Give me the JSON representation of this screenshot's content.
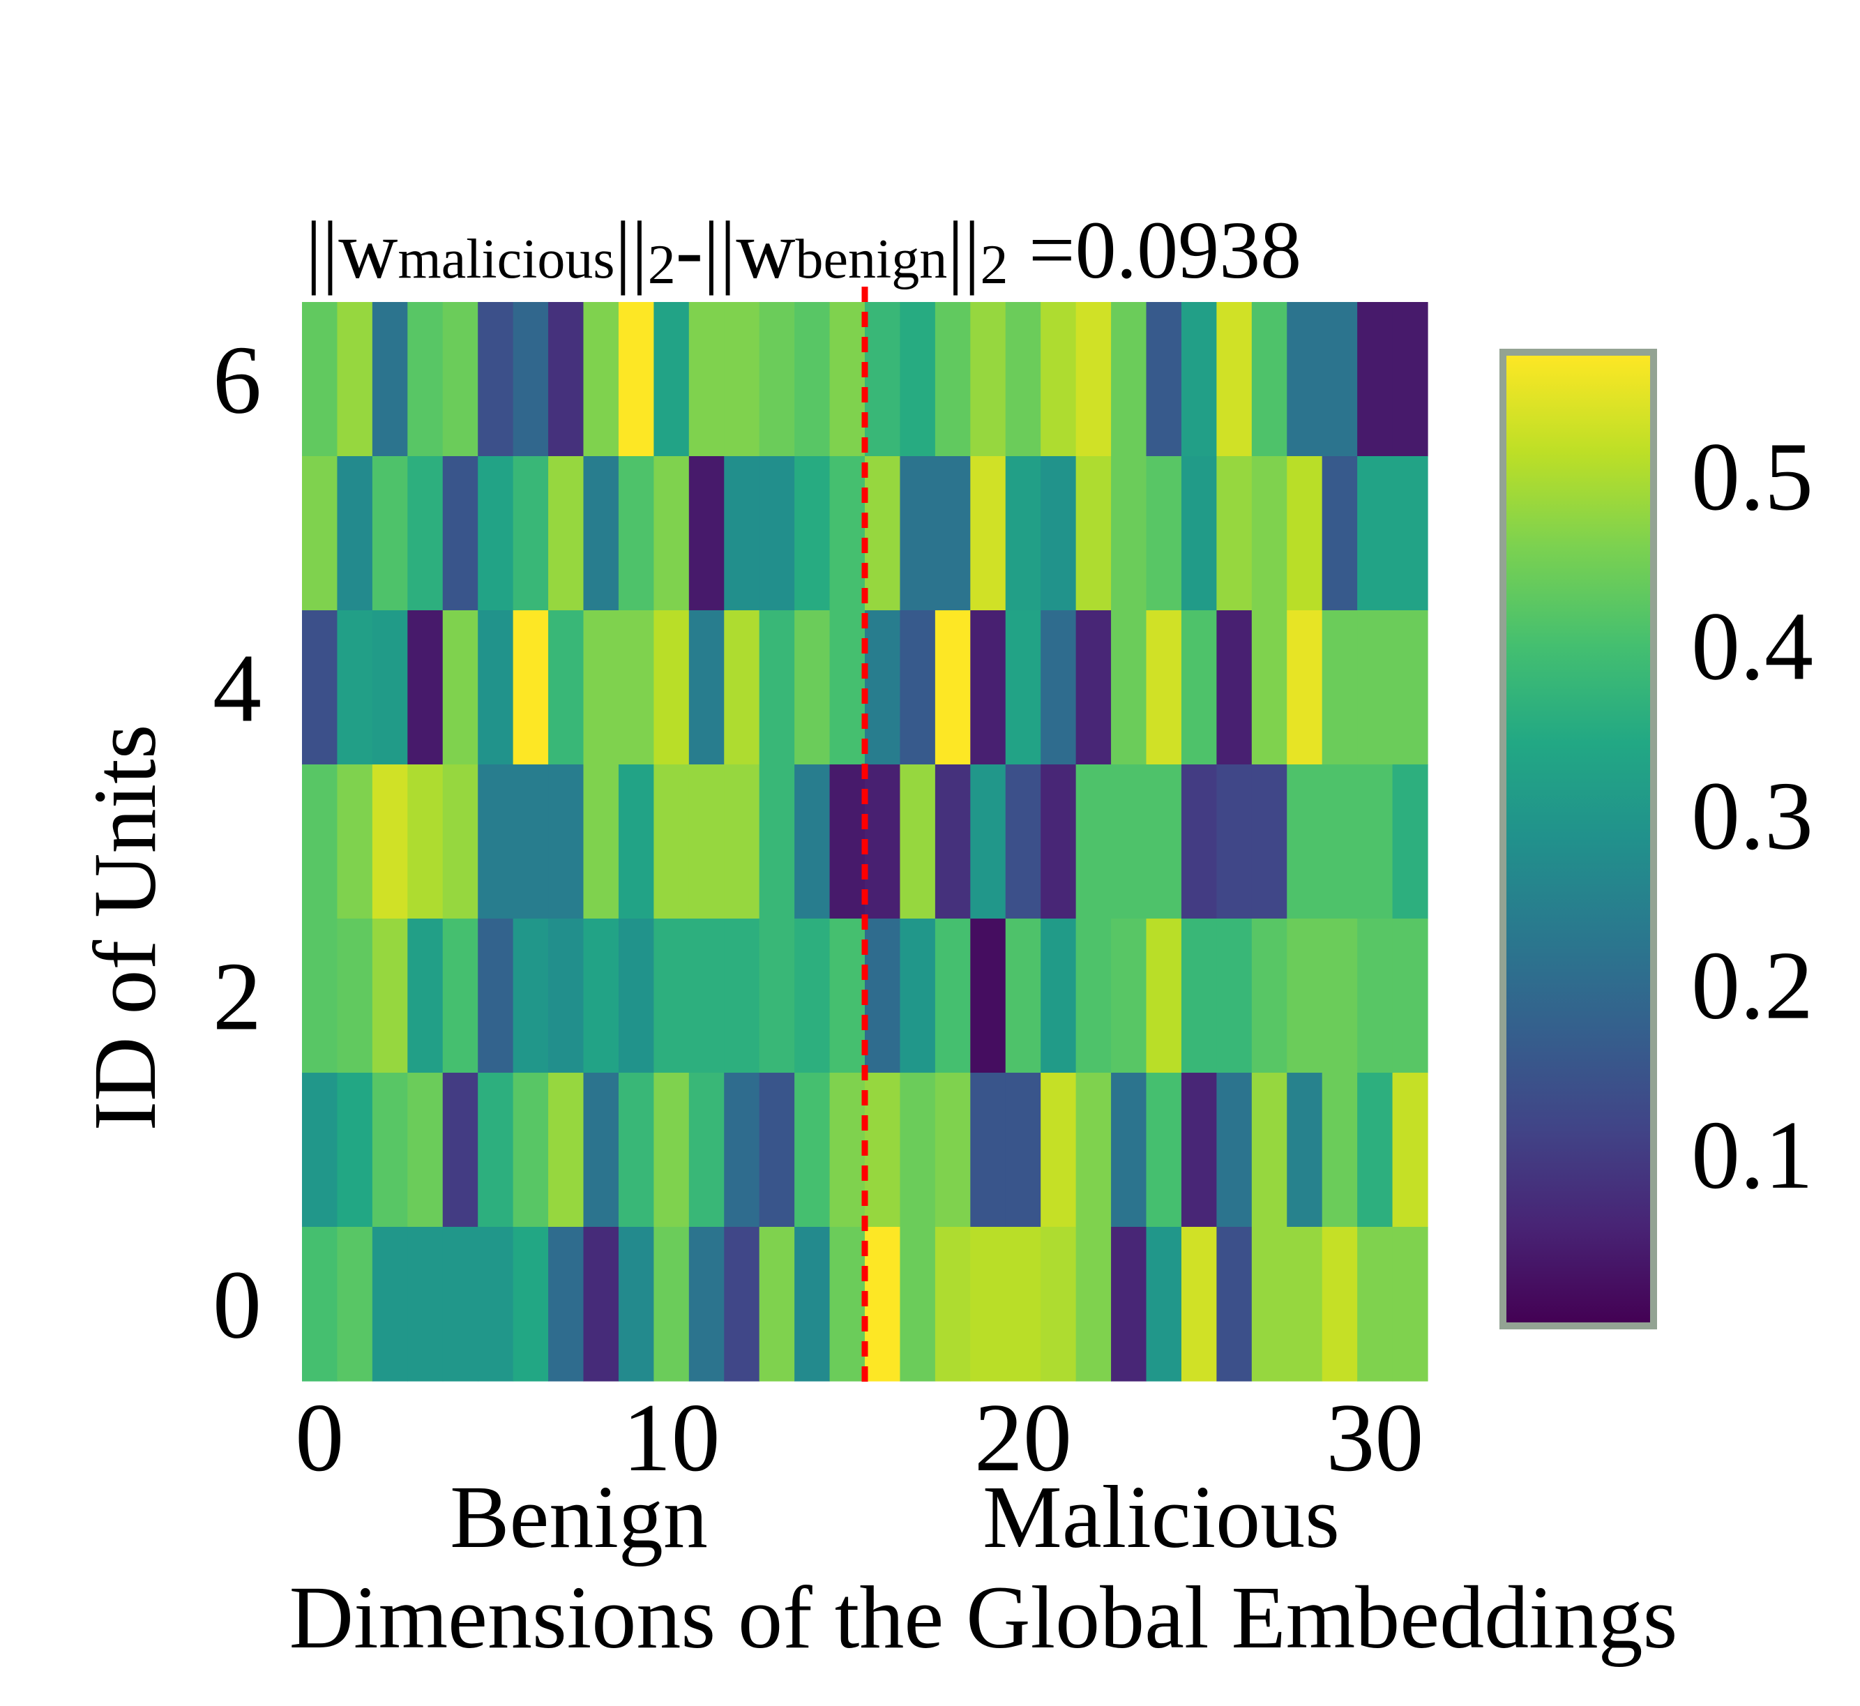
{
  "chart_data": {
    "type": "heatmap",
    "title": {
      "parts": [
        "||w",
        "malicious",
        "||",
        "2",
        "-||w",
        "benign",
        "||",
        "2",
        " =0.0938"
      ],
      "full": "||w_malicious||_2-||w_benign||_2 =0.0938"
    },
    "xlabel": "Dimensions of the Global Embeddings",
    "ylabel": "ID of Units",
    "group_labels": [
      "Benign",
      "Malicious"
    ],
    "divider_at": 15.5,
    "xlim": [
      -0.5,
      31.5
    ],
    "ylim": [
      -0.5,
      6.5
    ],
    "x_ticks": [
      0,
      10,
      20,
      30
    ],
    "x_tick_labels": [
      "0",
      "10",
      "20",
      "30"
    ],
    "y_ticks": [
      0,
      2,
      4,
      6
    ],
    "y_tick_labels": [
      "0",
      "2",
      "4",
      "6"
    ],
    "colormap": "viridis",
    "vmin": 0.0,
    "vmax": 0.57,
    "colorbar_ticks": [
      0.1,
      0.2,
      0.3,
      0.4,
      0.5
    ],
    "colorbar_tick_labels": [
      "0.1",
      "0.2",
      "0.3",
      "0.4",
      "0.5"
    ],
    "divider_color": "#ff0000",
    "rows": [
      {
        "unit": 6,
        "values": [
          0.43,
          0.48,
          0.22,
          0.42,
          0.44,
          0.14,
          0.19,
          0.08,
          0.46,
          0.57,
          0.33,
          0.46,
          0.46,
          0.44,
          0.42,
          0.46,
          0.38,
          0.35,
          0.43,
          0.48,
          0.44,
          0.5,
          0.53,
          0.44,
          0.16,
          0.32,
          0.53,
          0.41,
          0.22,
          0.22,
          0.04,
          0.04
        ]
      },
      {
        "unit": 5,
        "values": [
          0.46,
          0.27,
          0.41,
          0.36,
          0.15,
          0.33,
          0.38,
          0.48,
          0.24,
          0.41,
          0.46,
          0.04,
          0.28,
          0.28,
          0.35,
          0.4,
          0.48,
          0.22,
          0.22,
          0.53,
          0.32,
          0.29,
          0.5,
          0.44,
          0.42,
          0.31,
          0.48,
          0.46,
          0.51,
          0.16,
          0.33,
          0.33
        ]
      },
      {
        "unit": 4,
        "values": [
          0.14,
          0.32,
          0.31,
          0.04,
          0.46,
          0.29,
          0.57,
          0.38,
          0.46,
          0.46,
          0.51,
          0.24,
          0.5,
          0.38,
          0.44,
          0.4,
          0.24,
          0.16,
          0.57,
          0.05,
          0.33,
          0.2,
          0.06,
          0.44,
          0.53,
          0.41,
          0.05,
          0.46,
          0.55,
          0.44,
          0.44,
          0.44
        ]
      },
      {
        "unit": 3,
        "values": [
          0.42,
          0.46,
          0.53,
          0.5,
          0.48,
          0.24,
          0.24,
          0.24,
          0.46,
          0.33,
          0.48,
          0.48,
          0.48,
          0.38,
          0.24,
          0.04,
          0.05,
          0.48,
          0.08,
          0.3,
          0.14,
          0.06,
          0.41,
          0.41,
          0.41,
          0.1,
          0.12,
          0.12,
          0.41,
          0.41,
          0.41,
          0.36
        ]
      },
      {
        "unit": 2,
        "values": [
          0.42,
          0.43,
          0.48,
          0.32,
          0.4,
          0.18,
          0.3,
          0.28,
          0.33,
          0.29,
          0.36,
          0.36,
          0.36,
          0.38,
          0.36,
          0.4,
          0.2,
          0.3,
          0.4,
          0.02,
          0.41,
          0.31,
          0.41,
          0.42,
          0.51,
          0.38,
          0.38,
          0.42,
          0.44,
          0.44,
          0.42,
          0.42
        ]
      },
      {
        "unit": 1,
        "values": [
          0.3,
          0.34,
          0.42,
          0.44,
          0.1,
          0.36,
          0.42,
          0.48,
          0.22,
          0.38,
          0.46,
          0.38,
          0.2,
          0.15,
          0.4,
          0.46,
          0.48,
          0.44,
          0.46,
          0.15,
          0.15,
          0.52,
          0.46,
          0.22,
          0.4,
          0.06,
          0.22,
          0.48,
          0.25,
          0.44,
          0.36,
          0.52
        ]
      },
      {
        "unit": 0,
        "values": [
          0.4,
          0.42,
          0.3,
          0.3,
          0.3,
          0.3,
          0.34,
          0.2,
          0.07,
          0.27,
          0.44,
          0.22,
          0.12,
          0.46,
          0.27,
          0.44,
          0.57,
          0.44,
          0.5,
          0.51,
          0.51,
          0.5,
          0.46,
          0.06,
          0.3,
          0.53,
          0.14,
          0.48,
          0.48,
          0.52,
          0.46,
          0.46
        ]
      }
    ]
  }
}
